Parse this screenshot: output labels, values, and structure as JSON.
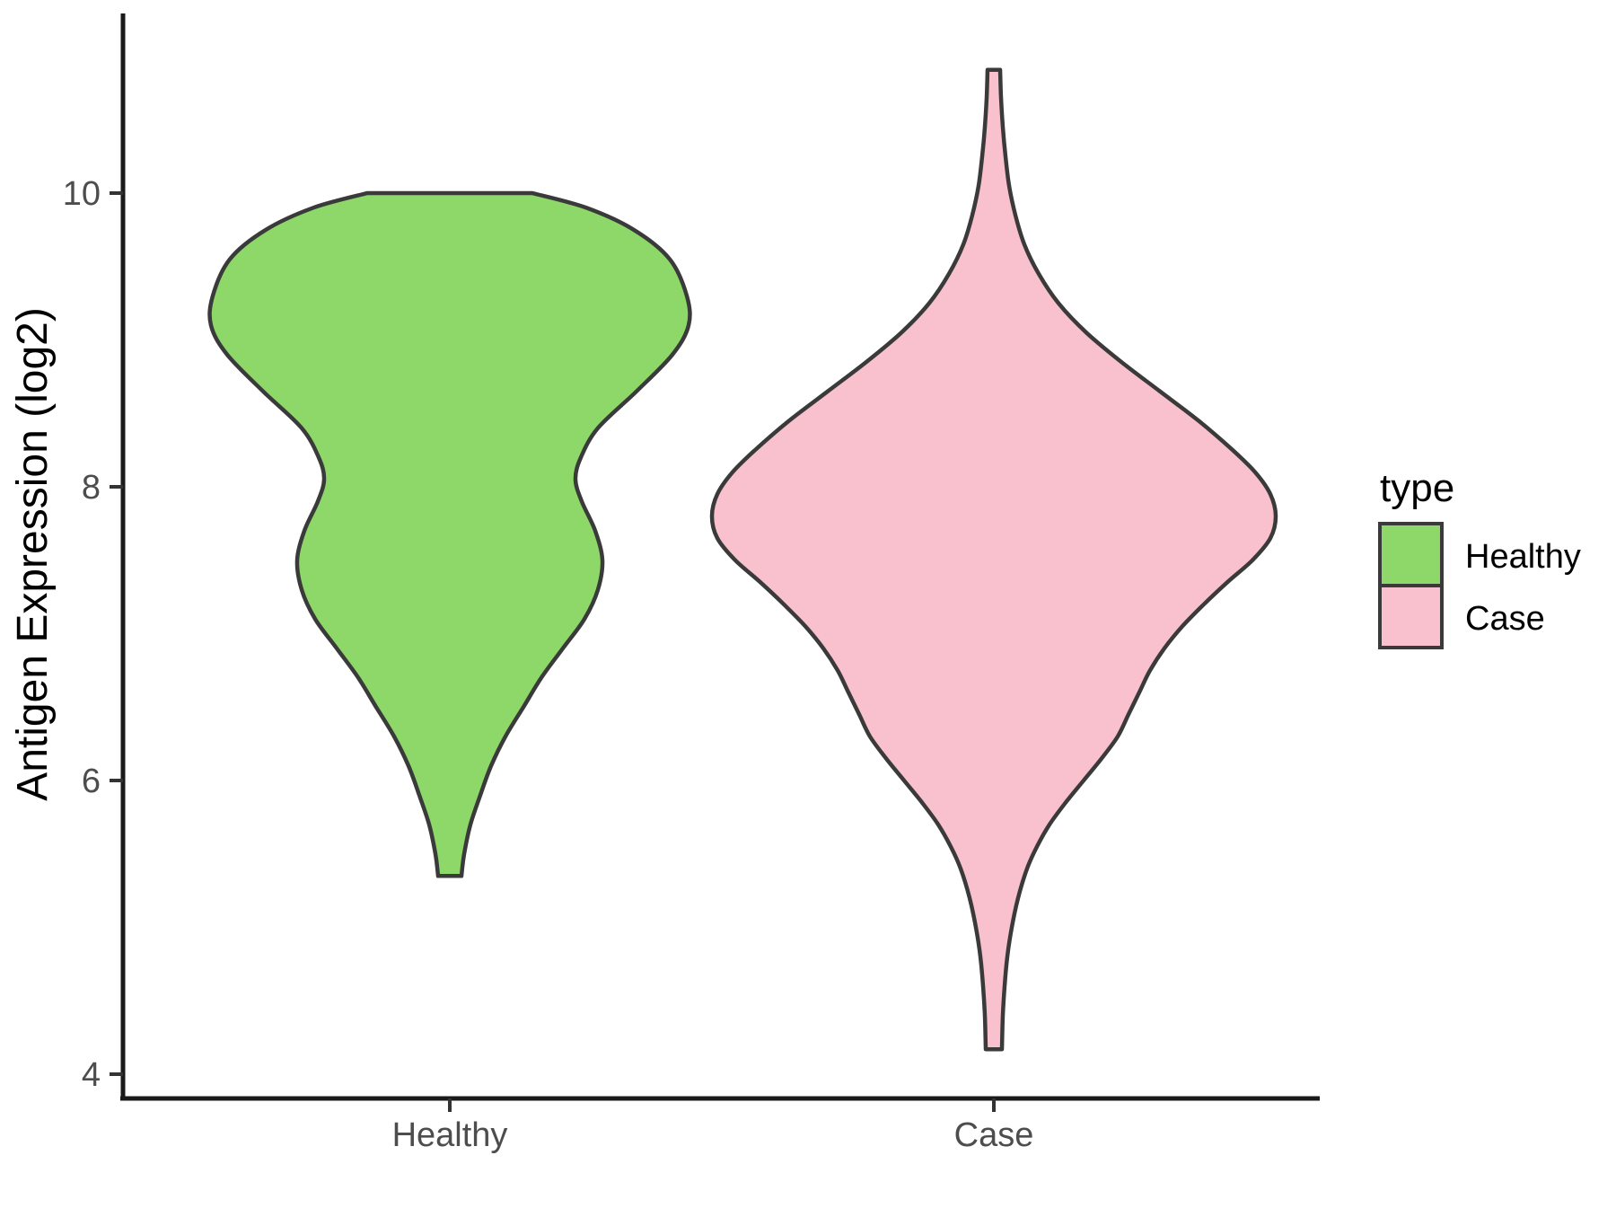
{
  "figure": {
    "background": "#FFFFFF",
    "panel_background": "#FFFFFF"
  },
  "colors": {
    "healthy_fill": "#8ED86A",
    "case_fill": "#F8C1CD",
    "violin_outline": "#3A3A3A",
    "axis_line": "#1A1A1A",
    "tick_mark": "#333333",
    "tick_text": "#4D4D4D",
    "title_text": "#000000"
  },
  "legend": {
    "title": "type",
    "items": [
      {
        "label": "Healthy",
        "color": "#8ED86A"
      },
      {
        "label": "Case",
        "color": "#F8C1CD"
      }
    ],
    "position": "right"
  },
  "chart_data": {
    "type": "violin",
    "title": "",
    "xlabel": "",
    "ylabel": "Antigen Expression (log2)",
    "categories": [
      "Healthy",
      "Case"
    ],
    "yticks": [
      10,
      8,
      6,
      4
    ],
    "ylim": [
      3.85,
      11.3
    ],
    "grid": "off",
    "legend_title": "type",
    "legend_position": "right",
    "series": [
      {
        "name": "Healthy",
        "fill": "#8ED86A",
        "value_range": [
          5.35,
          10.0
        ],
        "truncated_top": true,
        "truncated_bottom": true,
        "density_profile": [
          [
            10.0,
            92
          ],
          [
            9.9,
            152
          ],
          [
            9.75,
            205
          ],
          [
            9.55,
            245
          ],
          [
            9.3,
            264
          ],
          [
            9.1,
            266
          ],
          [
            8.9,
            248
          ],
          [
            8.65,
            208
          ],
          [
            8.4,
            165
          ],
          [
            8.2,
            146
          ],
          [
            8.05,
            140
          ],
          [
            7.9,
            147
          ],
          [
            7.7,
            162
          ],
          [
            7.5,
            170
          ],
          [
            7.3,
            165
          ],
          [
            7.1,
            150
          ],
          [
            6.9,
            126
          ],
          [
            6.7,
            102
          ],
          [
            6.5,
            82
          ],
          [
            6.3,
            62
          ],
          [
            6.1,
            46
          ],
          [
            5.9,
            34
          ],
          [
            5.7,
            23
          ],
          [
            5.5,
            16
          ],
          [
            5.35,
            13
          ]
        ]
      },
      {
        "name": "Case",
        "fill": "#F8C1CD",
        "value_range": [
          4.17,
          10.84
        ],
        "truncated_top": true,
        "truncated_bottom": true,
        "density_profile": [
          [
            10.84,
            7
          ],
          [
            10.65,
            8
          ],
          [
            10.45,
            10
          ],
          [
            10.25,
            13
          ],
          [
            10.05,
            17
          ],
          [
            9.85,
            24
          ],
          [
            9.65,
            34
          ],
          [
            9.45,
            50
          ],
          [
            9.25,
            72
          ],
          [
            9.05,
            103
          ],
          [
            8.85,
            142
          ],
          [
            8.65,
            185
          ],
          [
            8.45,
            228
          ],
          [
            8.25,
            266
          ],
          [
            8.1,
            291
          ],
          [
            7.95,
            308
          ],
          [
            7.8,
            314
          ],
          [
            7.65,
            308
          ],
          [
            7.5,
            288
          ],
          [
            7.35,
            260
          ],
          [
            7.2,
            234
          ],
          [
            7.05,
            210
          ],
          [
            6.9,
            190
          ],
          [
            6.75,
            174
          ],
          [
            6.6,
            162
          ],
          [
            6.45,
            150
          ],
          [
            6.3,
            138
          ],
          [
            6.15,
            120
          ],
          [
            6.0,
            100
          ],
          [
            5.85,
            80
          ],
          [
            5.7,
            62
          ],
          [
            5.55,
            48
          ],
          [
            5.4,
            37
          ],
          [
            5.2,
            27
          ],
          [
            5.0,
            20
          ],
          [
            4.8,
            15
          ],
          [
            4.6,
            12
          ],
          [
            4.4,
            10
          ],
          [
            4.17,
            9
          ]
        ]
      }
    ]
  }
}
